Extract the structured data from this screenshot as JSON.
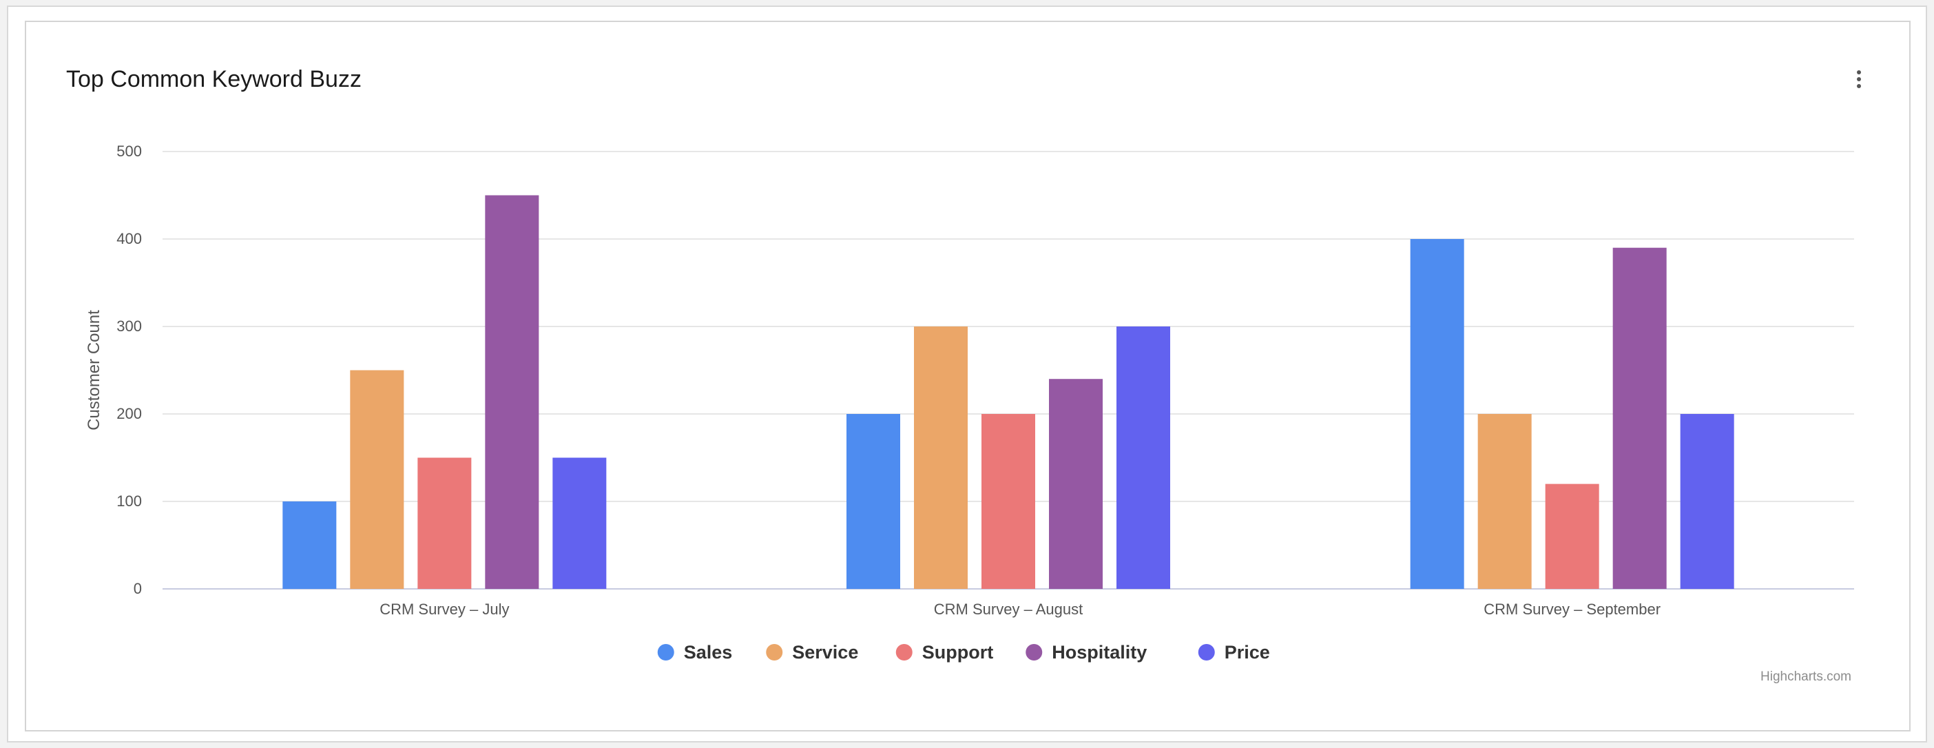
{
  "window": {
    "menu_icon": "kebab-menu-icon"
  },
  "credit": "Highcharts.com",
  "colors": {
    "Sales": "#4e8cf0",
    "Service": "#eba668",
    "Support": "#eb7878",
    "Hospitality": "#9558a3",
    "Price": "#6262ef",
    "grid": "#e6e6e6",
    "axis_text": "#555555"
  },
  "chart_data": {
    "type": "bar",
    "title": "Top Common Keyword Buzz",
    "ylabel": "Customer Count",
    "xlabel": "",
    "ylim": [
      0,
      500
    ],
    "yticks": [
      0,
      100,
      200,
      300,
      400,
      500
    ],
    "grid": true,
    "legend_position": "bottom-center",
    "categories": [
      "CRM Survey – July",
      "CRM Survey – August",
      "CRM Survey – September"
    ],
    "series": [
      {
        "name": "Sales",
        "values": [
          100,
          200,
          400
        ]
      },
      {
        "name": "Service",
        "values": [
          250,
          300,
          200
        ]
      },
      {
        "name": "Support",
        "values": [
          150,
          200,
          120
        ]
      },
      {
        "name": "Hospitality",
        "values": [
          450,
          240,
          390
        ]
      },
      {
        "name": "Price",
        "values": [
          150,
          300,
          200
        ]
      }
    ]
  }
}
